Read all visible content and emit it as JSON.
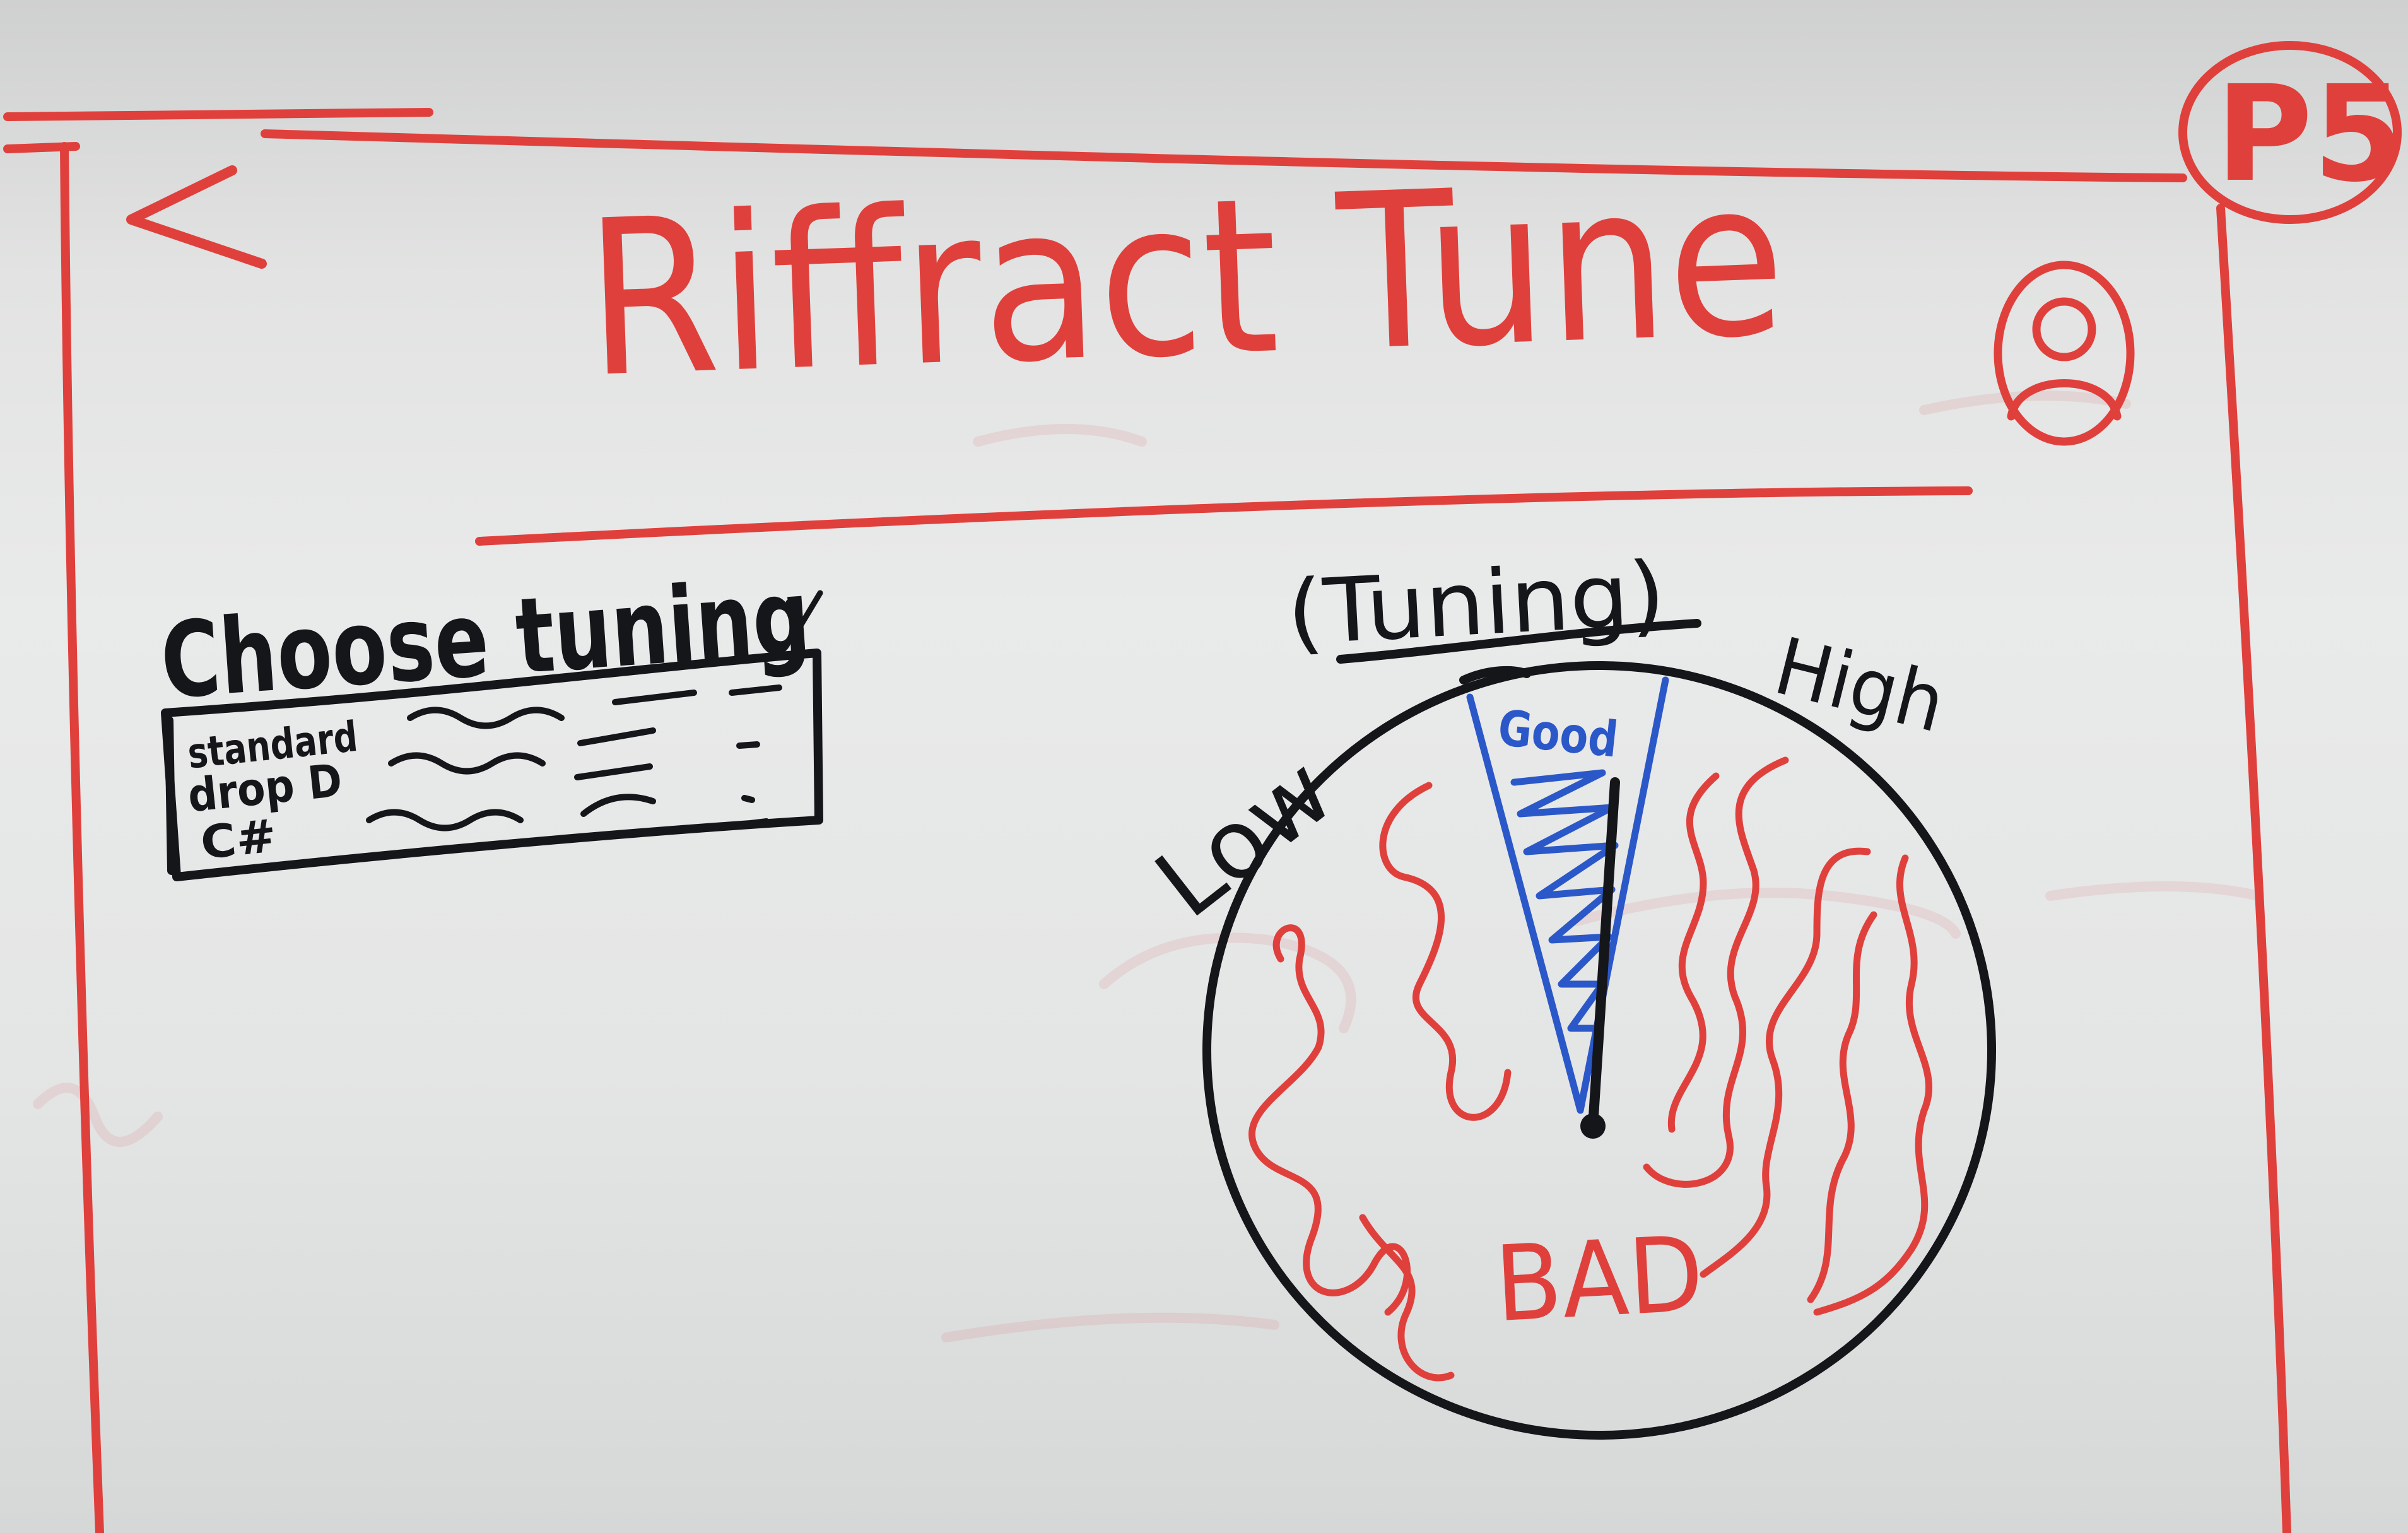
{
  "app": {
    "title": "Riffract Tune",
    "back_icon": "chevron-left-icon",
    "profile_icon": "user-avatar-icon",
    "corner_badge": "P5"
  },
  "tuning_select": {
    "label": "Choose tuning",
    "dropdown_icon": "chevron-down-icon",
    "options": [
      {
        "label": "standard"
      },
      {
        "label": "drop D"
      },
      {
        "label": "C#"
      }
    ]
  },
  "tuner": {
    "heading": "(Tuning)",
    "label_low": "Low",
    "label_high": "High",
    "label_good": "Good",
    "label_bad": "BAD"
  },
  "colors": {
    "red_marker": "#e0403c",
    "black_marker": "#15161a",
    "blue_marker": "#2b58c9",
    "board": "#e6e7e7"
  }
}
